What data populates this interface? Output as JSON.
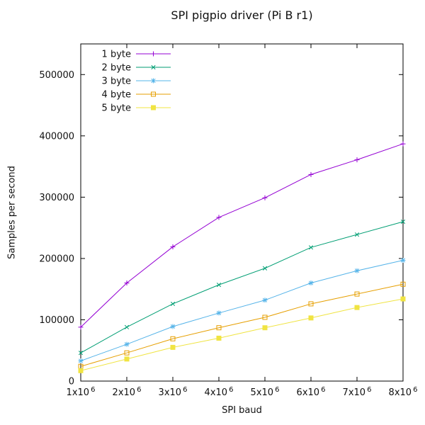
{
  "chart_data": {
    "type": "line",
    "title": "SPI pigpio driver (Pi B r1)",
    "xlabel": "SPI baud",
    "ylabel": "Samples per second",
    "x": [
      1000000,
      2000000,
      3000000,
      4000000,
      5000000,
      6000000,
      7000000,
      8000000
    ],
    "x_tick_labels": [
      "1x10^6",
      "2x10^6",
      "3x10^6",
      "4x10^6",
      "5x10^6",
      "6x10^6",
      "7x10^6",
      "8x10^6"
    ],
    "y_ticks": [
      0,
      100000,
      200000,
      300000,
      400000,
      500000
    ],
    "y_tick_labels": [
      "0",
      "100000",
      "200000",
      "300000",
      "400000",
      "500000"
    ],
    "xlim": [
      1000000,
      8000000
    ],
    "ylim": [
      0,
      550000
    ],
    "grid": false,
    "legend_position": "top-left-inside",
    "axis_color": "#000000",
    "text_color": "#111111",
    "series": [
      {
        "name": "1 byte",
        "marker": "plus",
        "color": "#9400d3",
        "values": [
          88000,
          160000,
          219000,
          267000,
          299000,
          337000,
          361000,
          387000
        ]
      },
      {
        "name": "2 byte",
        "marker": "cross",
        "color": "#009e73",
        "values": [
          46000,
          88000,
          126000,
          157000,
          184000,
          218000,
          239000,
          260000
        ]
      },
      {
        "name": "3 byte",
        "marker": "asterisk",
        "color": "#56b4e9",
        "values": [
          33000,
          60000,
          89000,
          111000,
          132000,
          160000,
          180000,
          197000
        ]
      },
      {
        "name": "4 byte",
        "marker": "open-square",
        "color": "#e69f00",
        "values": [
          24000,
          46000,
          69000,
          87000,
          104000,
          126000,
          142000,
          158000
        ]
      },
      {
        "name": "5 byte",
        "marker": "filled-square",
        "color": "#f0e442",
        "values": [
          17000,
          36000,
          55000,
          70000,
          87000,
          103000,
          120000,
          134000
        ]
      }
    ]
  }
}
